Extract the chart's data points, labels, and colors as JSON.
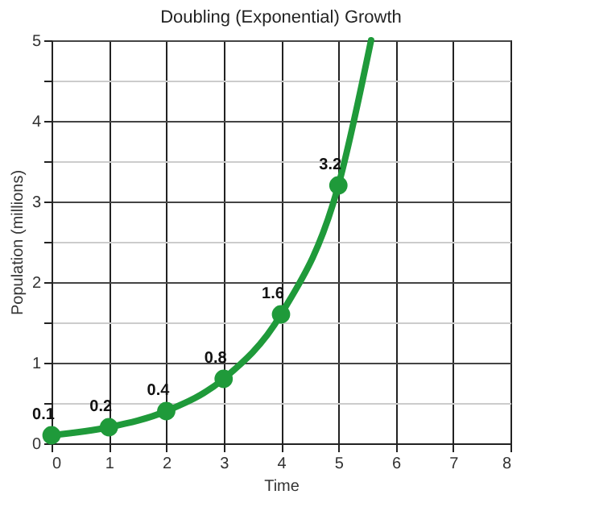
{
  "chart_data": {
    "type": "line",
    "title": "Doubling (Exponential) Growth",
    "xlabel": "Time",
    "ylabel": "Population (millions)",
    "series": [
      {
        "color": "#1f9a3a",
        "marker": "none",
        "x": [
          0,
          1,
          2,
          3,
          4,
          5,
          5.57
        ],
        "values": [
          0.1,
          0.2,
          0.4,
          0.8,
          1.6,
          3.2,
          5
        ]
      },
      {
        "type": "scatter",
        "color": "#1f9a3a",
        "marker": "circle",
        "x": [
          0,
          1,
          2,
          3,
          4,
          5
        ],
        "values": [
          0.1,
          0.2,
          0.4,
          0.8,
          1.6,
          3.2
        ],
        "value_labels": [
          "0.1",
          "0.2",
          "0.4",
          "0.8",
          "1.6",
          "3.2"
        ]
      }
    ],
    "xlim": [
      0,
      8
    ],
    "xticks": [
      0,
      1,
      2,
      3,
      4,
      5,
      6,
      7,
      8
    ],
    "ylim": [
      0,
      5
    ],
    "yticks": [
      0,
      {
        "value": 0.5,
        "label": null
      },
      1,
      {
        "value": 1.5,
        "label": null
      },
      2,
      {
        "value": 2.5,
        "label": null
      },
      3,
      {
        "value": 3.5,
        "label": null
      },
      4,
      {
        "value": 4.5,
        "label": null
      },
      5
    ],
    "grid": true
  }
}
